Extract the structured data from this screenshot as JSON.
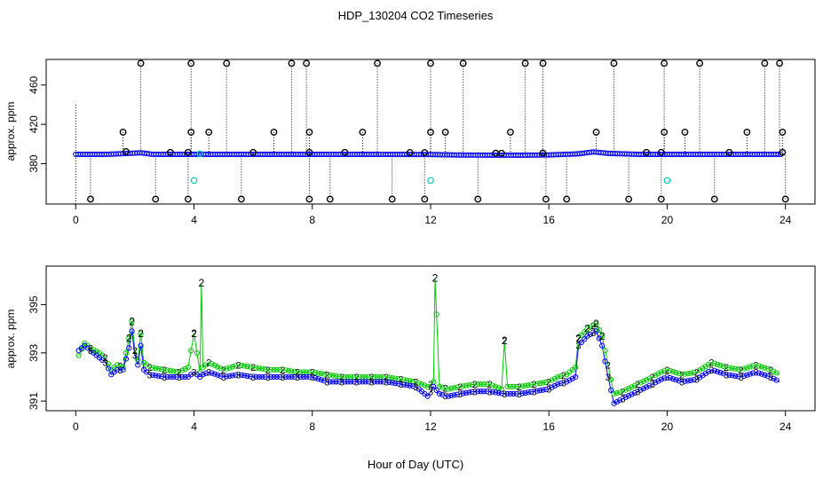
{
  "figure": {
    "title": "HDP_130204  CO2 Timeseries",
    "xlabel": "Hour of Day (UTC)"
  },
  "colors": {
    "axis": "#000000",
    "series1": "#0000ff",
    "series2": "#00cc00",
    "series3": "#0000ff",
    "cyan": "#00cccc",
    "flag": "#000000"
  },
  "chart_data": [
    {
      "type": "scatter",
      "ylabel": "approx. ppm",
      "xlim": [
        -1,
        25
      ],
      "ylim": [
        339,
        486
      ],
      "x_ticks": [
        0,
        4,
        8,
        12,
        16,
        20,
        24
      ],
      "y_ticks": [
        380,
        420,
        460
      ],
      "description_series": [
        {
          "name": "",
          "values_note": ""
        }
      ],
      "baseline": [
        [
          0.0,
          389.5
        ],
        [
          1.0,
          389.5
        ],
        [
          1.7,
          390.3
        ],
        [
          2.2,
          391.1
        ],
        [
          2.6,
          389.5
        ],
        [
          4.0,
          389.5
        ],
        [
          6.0,
          389.5
        ],
        [
          8.0,
          389.5
        ],
        [
          10.0,
          389.5
        ],
        [
          12.0,
          389.3
        ],
        [
          13.0,
          388.8
        ],
        [
          15.0,
          388.6
        ],
        [
          16.0,
          388.9
        ],
        [
          17.0,
          390.0
        ],
        [
          17.5,
          392.0
        ],
        [
          18.0,
          390.5
        ],
        [
          19.0,
          389.5
        ],
        [
          20.0,
          389.5
        ],
        [
          22.0,
          389.5
        ],
        [
          24.0,
          389.5
        ]
      ],
      "flags_high": [
        2.2,
        3.9,
        5.1,
        7.3,
        7.8,
        10.2,
        12.0,
        13.1,
        15.2,
        15.8,
        18.2,
        19.9,
        21.1,
        23.3,
        23.8
      ],
      "flags_mid": [
        1.6,
        3.9,
        4.5,
        6.7,
        7.9,
        9.7,
        12.0,
        12.5,
        14.7,
        17.6,
        19.9,
        20.6,
        22.7,
        23.9
      ],
      "flags_low": [
        0.5,
        2.7,
        3.8,
        5.6,
        7.9,
        8.6,
        10.7,
        11.8,
        13.6,
        15.9,
        16.6,
        18.7,
        19.8,
        21.6,
        24.0
      ],
      "flags_base": [
        1.7,
        3.2,
        3.8,
        6.0,
        7.9,
        9.1,
        11.3,
        11.8,
        14.2,
        14.4,
        15.8,
        19.3,
        19.8,
        22.1,
        23.9
      ],
      "y_high": 482,
      "y_mid": 412,
      "y_low": 344,
      "cyan_points": [
        [
          4.0,
          363
        ],
        [
          12.0,
          363
        ],
        [
          20.0,
          363
        ],
        [
          4.2,
          390
        ]
      ]
    },
    {
      "type": "line",
      "ylabel": "approx. ppm",
      "xlim": [
        -1,
        25
      ],
      "ylim": [
        390.6,
        396.6
      ],
      "x_ticks": [
        0,
        4,
        8,
        12,
        16,
        20,
        24
      ],
      "y_ticks": [
        391,
        393,
        395
      ],
      "series": [
        {
          "name": "",
          "symbol": "2",
          "values": [
            [
              0.1,
              392.9
            ],
            [
              0.3,
              393.4
            ],
            [
              0.5,
              393.2
            ],
            [
              0.8,
              393.0
            ],
            [
              1.0,
              392.8
            ],
            [
              1.2,
              392.3
            ],
            [
              1.4,
              392.5
            ],
            [
              1.6,
              392.4
            ],
            [
              1.8,
              393.6
            ],
            [
              1.9,
              394.3
            ],
            [
              2.0,
              393.1
            ],
            [
              2.1,
              392.7
            ],
            [
              2.2,
              393.8
            ],
            [
              2.3,
              392.6
            ],
            [
              2.5,
              392.4
            ],
            [
              3.0,
              392.3
            ],
            [
              3.5,
              392.2
            ],
            [
              3.8,
              392.4
            ],
            [
              4.0,
              393.8
            ],
            [
              4.2,
              392.2
            ],
            [
              4.25,
              395.9
            ],
            [
              4.3,
              392.4
            ],
            [
              4.5,
              392.6
            ],
            [
              5.0,
              392.3
            ],
            [
              5.5,
              392.5
            ],
            [
              6.0,
              392.4
            ],
            [
              6.5,
              392.3
            ],
            [
              7.0,
              392.3
            ],
            [
              7.5,
              392.2
            ],
            [
              7.8,
              392.2
            ],
            [
              8.0,
              392.2
            ],
            [
              8.5,
              392.1
            ],
            [
              9.0,
              392.0
            ],
            [
              9.5,
              392.0
            ],
            [
              10.0,
              392.0
            ],
            [
              10.5,
              392.0
            ],
            [
              11.0,
              391.9
            ],
            [
              11.5,
              391.8
            ],
            [
              11.9,
              391.6
            ],
            [
              12.1,
              391.8
            ],
            [
              12.15,
              396.1
            ],
            [
              12.3,
              391.6
            ],
            [
              12.6,
              391.5
            ],
            [
              13.0,
              391.6
            ],
            [
              13.5,
              391.7
            ],
            [
              14.0,
              391.7
            ],
            [
              14.4,
              391.5
            ],
            [
              14.5,
              393.5
            ],
            [
              14.6,
              391.6
            ],
            [
              15.0,
              391.6
            ],
            [
              15.5,
              391.7
            ],
            [
              16.0,
              391.8
            ],
            [
              16.3,
              392.0
            ],
            [
              16.6,
              392.1
            ],
            [
              16.9,
              392.4
            ],
            [
              17.0,
              393.6
            ],
            [
              17.3,
              394.0
            ],
            [
              17.6,
              394.2
            ],
            [
              17.8,
              393.7
            ],
            [
              18.0,
              392.5
            ],
            [
              18.2,
              391.3
            ],
            [
              18.5,
              391.4
            ],
            [
              19.0,
              391.7
            ],
            [
              19.5,
              392.0
            ],
            [
              19.8,
              392.2
            ],
            [
              20.0,
              392.3
            ],
            [
              20.5,
              392.1
            ],
            [
              21.0,
              392.2
            ],
            [
              21.5,
              392.6
            ],
            [
              22.0,
              392.4
            ],
            [
              22.5,
              392.3
            ],
            [
              23.0,
              392.5
            ],
            [
              23.5,
              392.3
            ],
            [
              23.8,
              392.1
            ]
          ]
        },
        {
          "name": "",
          "symbol": "3",
          "values": [
            [
              0.1,
              393.1
            ],
            [
              0.3,
              393.3
            ],
            [
              0.5,
              393.1
            ],
            [
              0.8,
              392.8
            ],
            [
              1.0,
              392.6
            ],
            [
              1.2,
              392.1
            ],
            [
              1.4,
              392.3
            ],
            [
              1.6,
              392.3
            ],
            [
              1.8,
              393.2
            ],
            [
              1.9,
              393.9
            ],
            [
              2.0,
              392.9
            ],
            [
              2.1,
              392.5
            ],
            [
              2.2,
              393.3
            ],
            [
              2.3,
              392.3
            ],
            [
              2.5,
              392.1
            ],
            [
              3.0,
              392.0
            ],
            [
              3.5,
              392.0
            ],
            [
              3.8,
              392.0
            ],
            [
              4.0,
              392.2
            ],
            [
              4.2,
              392.0
            ],
            [
              4.3,
              392.1
            ],
            [
              4.5,
              392.2
            ],
            [
              5.0,
              392.0
            ],
            [
              5.5,
              392.1
            ],
            [
              6.0,
              392.0
            ],
            [
              6.5,
              392.0
            ],
            [
              7.0,
              392.0
            ],
            [
              7.5,
              392.0
            ],
            [
              7.8,
              392.0
            ],
            [
              8.0,
              392.0
            ],
            [
              8.5,
              391.8
            ],
            [
              9.0,
              391.8
            ],
            [
              9.5,
              391.8
            ],
            [
              10.0,
              391.8
            ],
            [
              10.5,
              391.8
            ],
            [
              11.0,
              391.7
            ],
            [
              11.5,
              391.6
            ],
            [
              11.9,
              391.2
            ],
            [
              12.1,
              391.6
            ],
            [
              12.3,
              391.3
            ],
            [
              12.6,
              391.2
            ],
            [
              13.0,
              391.3
            ],
            [
              13.5,
              391.4
            ],
            [
              14.0,
              391.4
            ],
            [
              14.5,
              391.3
            ],
            [
              15.0,
              391.3
            ],
            [
              15.5,
              391.4
            ],
            [
              16.0,
              391.5
            ],
            [
              16.3,
              391.7
            ],
            [
              16.6,
              391.8
            ],
            [
              16.9,
              392.0
            ],
            [
              17.0,
              393.3
            ],
            [
              17.3,
              393.7
            ],
            [
              17.6,
              393.9
            ],
            [
              17.8,
              393.3
            ],
            [
              18.0,
              392.0
            ],
            [
              18.2,
              390.9
            ],
            [
              18.5,
              391.1
            ],
            [
              19.0,
              391.4
            ],
            [
              19.5,
              391.7
            ],
            [
              19.8,
              391.9
            ],
            [
              20.0,
              392.0
            ],
            [
              20.5,
              391.8
            ],
            [
              21.0,
              391.9
            ],
            [
              21.5,
              392.3
            ],
            [
              22.0,
              392.1
            ],
            [
              22.5,
              392.0
            ],
            [
              23.0,
              392.2
            ],
            [
              23.5,
              392.0
            ],
            [
              23.8,
              391.8
            ]
          ]
        }
      ]
    }
  ]
}
